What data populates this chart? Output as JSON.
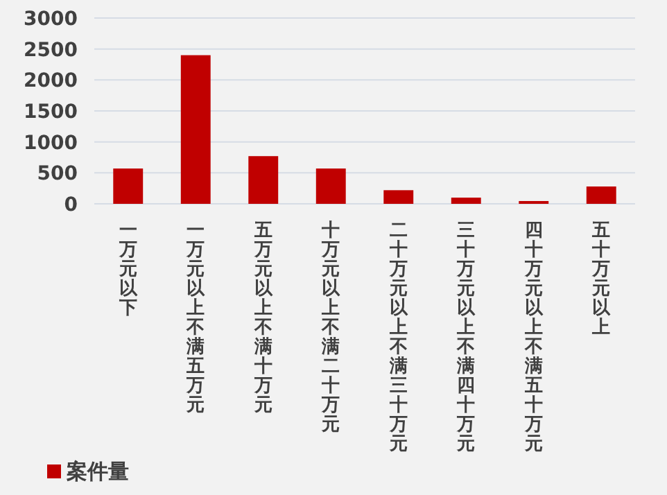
{
  "chart_data": {
    "type": "bar",
    "categories": [
      "一万元以下",
      "一万元以上不满五万元",
      "五万元以上不满十万元",
      "十万元以上不满二十万元",
      "二十万元以上不满三十万元",
      "三十万元以上不满四十万元",
      "四十万元以上不满五十万元",
      "五十万元以上"
    ],
    "series": [
      {
        "name": "案件量",
        "color": "#c00000",
        "values": [
          570,
          2400,
          770,
          570,
          220,
          100,
          45,
          280
        ]
      }
    ],
    "ylim": [
      0,
      3000
    ],
    "yticks": [
      0,
      500,
      1000,
      1500,
      2000,
      2500,
      3000
    ],
    "grid": "y",
    "legend": "bottom left"
  }
}
